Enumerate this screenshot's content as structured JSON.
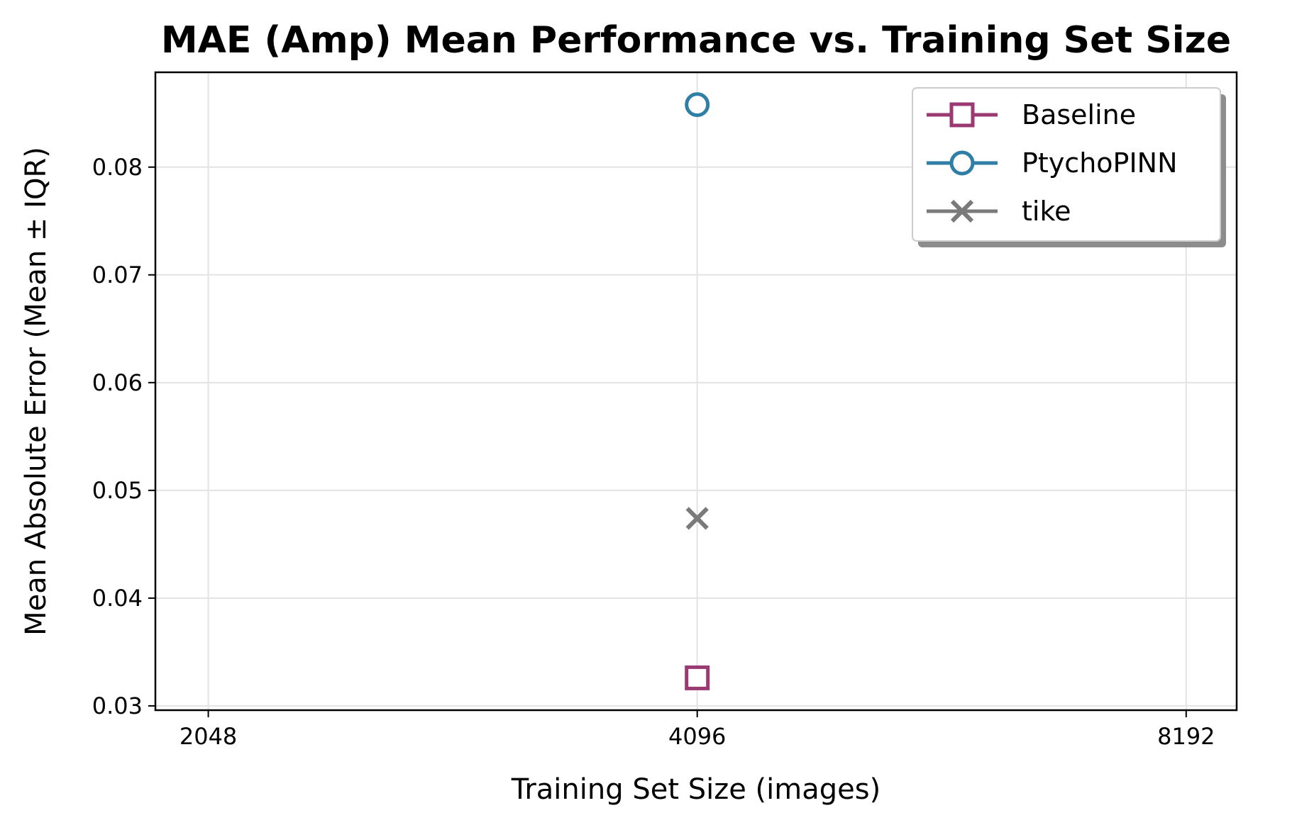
{
  "chart_data": {
    "type": "scatter",
    "title": "MAE (Amp) Mean Performance vs. Training Set Size",
    "xlabel": "Training Set Size (images)",
    "ylabel": "Mean Absolute Error (Mean ± IQR)",
    "x_scale": "log2",
    "x_ticks": [
      2048,
      4096,
      8192
    ],
    "x_tick_labels": [
      "2048",
      "4096",
      "8192"
    ],
    "xlim": [
      1900,
      8800
    ],
    "y_ticks": [
      0.03,
      0.04,
      0.05,
      0.06,
      0.07,
      0.08
    ],
    "y_tick_labels": [
      "0.03",
      "0.04",
      "0.05",
      "0.06",
      "0.07",
      "0.08"
    ],
    "ylim": [
      0.0296,
      0.0888
    ],
    "grid": true,
    "legend_position": "top-right",
    "series": [
      {
        "name": "Baseline",
        "marker": "square",
        "color": "#9b3a72",
        "x": [
          4096
        ],
        "y": [
          0.0326
        ]
      },
      {
        "name": "PtychoPINN",
        "marker": "circle",
        "color": "#2e7ea6",
        "x": [
          4096
        ],
        "y": [
          0.0858
        ]
      },
      {
        "name": "tike",
        "marker": "x",
        "color": "#7a7a7a",
        "x": [
          4096
        ],
        "y": [
          0.0474
        ]
      }
    ]
  }
}
